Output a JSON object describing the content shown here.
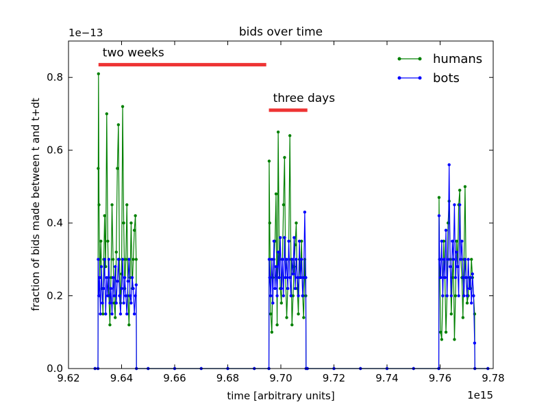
{
  "chart_data": {
    "type": "line",
    "title": "bids over time",
    "xlabel": "time [arbitrary units]",
    "ylabel": "fraction of bids made between t and t+dt",
    "x_offset_label": "1e15",
    "y_offset_label": "1e−13",
    "xlim": [
      9.62,
      9.78
    ],
    "ylim": [
      0,
      0.9
    ],
    "x_ticks": [
      {
        "value": 9.62,
        "label": "9.62"
      },
      {
        "value": 9.64,
        "label": "9.64"
      },
      {
        "value": 9.66,
        "label": "9.66"
      },
      {
        "value": 9.68,
        "label": "9.68"
      },
      {
        "value": 9.7,
        "label": "9.70"
      },
      {
        "value": 9.72,
        "label": "9.72"
      },
      {
        "value": 9.74,
        "label": "9.74"
      },
      {
        "value": 9.76,
        "label": "9.76"
      },
      {
        "value": 9.78,
        "label": "9.78"
      }
    ],
    "y_ticks": [
      {
        "value": 0.0,
        "label": "0.0"
      },
      {
        "value": 0.2,
        "label": "0.2"
      },
      {
        "value": 0.4,
        "label": "0.4"
      },
      {
        "value": 0.6,
        "label": "0.6"
      },
      {
        "value": 0.8,
        "label": "0.8"
      }
    ],
    "grid": false,
    "legend_position": "top-right",
    "series": [
      {
        "name": "humans",
        "color": "#008000",
        "x": [
          9.63,
          9.6311,
          9.6312,
          9.6313,
          9.6315,
          9.6318,
          9.6322,
          9.6326,
          9.633,
          9.6333,
          9.6336,
          9.634,
          9.6344,
          9.6348,
          9.6352,
          9.6356,
          9.636,
          9.6364,
          9.6368,
          9.6372,
          9.6376,
          9.638,
          9.6384,
          9.6388,
          9.6392,
          9.6396,
          9.64,
          9.6404,
          9.6408,
          9.6412,
          9.6416,
          9.642,
          9.6424,
          9.6428,
          9.6432,
          9.6436,
          9.644,
          9.6444,
          9.6448,
          9.6452,
          9.6455,
          9.6456,
          9.65,
          9.66,
          9.67,
          9.68,
          9.69,
          9.6955,
          9.6956,
          9.6958,
          9.6962,
          9.6966,
          9.697,
          9.6974,
          9.6978,
          9.6982,
          9.6986,
          9.699,
          9.6994,
          9.6998,
          9.7002,
          9.7006,
          9.701,
          9.7014,
          9.7018,
          9.7022,
          9.7026,
          9.703,
          9.7034,
          9.7038,
          9.7042,
          9.7046,
          9.705,
          9.7054,
          9.7058,
          9.7062,
          9.7066,
          9.707,
          9.7074,
          9.7078,
          9.7082,
          9.7086,
          9.709,
          9.7094,
          9.7095,
          9.71,
          9.72,
          9.73,
          9.74,
          9.75,
          9.7595,
          9.7596,
          9.7598,
          9.7602,
          9.7606,
          9.761,
          9.7614,
          9.7618,
          9.7622,
          9.7626,
          9.763,
          9.7634,
          9.7638,
          9.7642,
          9.7646,
          9.765,
          9.7654,
          9.7658,
          9.7662,
          9.7666,
          9.767,
          9.7674,
          9.7678,
          9.7682,
          9.7686,
          9.769,
          9.7694,
          9.7698,
          9.7702,
          9.7706,
          9.771,
          9.7714,
          9.7718,
          9.7722,
          9.7726,
          9.773,
          9.7731,
          9.778
        ],
        "y": [
          0,
          0,
          0.55,
          0.81,
          0.45,
          0.25,
          0.35,
          0.22,
          0.15,
          0.3,
          0.42,
          0.28,
          0.7,
          0.35,
          0.2,
          0.12,
          0.25,
          0.45,
          0.3,
          0.18,
          0.14,
          0.32,
          0.55,
          0.67,
          0.3,
          0.18,
          0.26,
          0.72,
          0.4,
          0.22,
          0.3,
          0.45,
          0.2,
          0.12,
          0.25,
          0.4,
          0.22,
          0.3,
          0.38,
          0.42,
          0.3,
          0,
          0,
          0,
          0,
          0,
          0,
          0,
          0.57,
          0.4,
          0.15,
          0.1,
          0.25,
          0.3,
          0.35,
          0.48,
          0.12,
          0.65,
          0.3,
          0.22,
          0.18,
          0.3,
          0.45,
          0.58,
          0.25,
          0.14,
          0.22,
          0.35,
          0.64,
          0.3,
          0.12,
          0.2,
          0.28,
          0.34,
          0.4,
          0.22,
          0.15,
          0.3,
          0.25,
          0.35,
          0.2,
          0.14,
          0.3,
          0.2,
          0,
          0,
          0,
          0,
          0,
          0,
          0,
          0.47,
          0.3,
          0.1,
          0.08,
          0.2,
          0.35,
          0.25,
          0.1,
          0.2,
          0.4,
          0.46,
          0.3,
          0.15,
          0.25,
          0.3,
          0.08,
          0.2,
          0.35,
          0.28,
          0.45,
          0.49,
          0.3,
          0.25,
          0.14,
          0.3,
          0.5,
          0.25,
          0.18,
          0.2,
          0.25,
          0.22,
          0.3,
          0.25,
          0.2,
          0.15,
          0,
          0
        ]
      },
      {
        "name": "bots",
        "color": "#0000ff",
        "x": [
          9.63,
          9.6311,
          9.6312,
          9.6314,
          9.6317,
          9.632,
          9.6324,
          9.6328,
          9.6332,
          9.6336,
          9.634,
          9.6344,
          9.6348,
          9.6352,
          9.6356,
          9.636,
          9.6364,
          9.6368,
          9.6372,
          9.6376,
          9.638,
          9.6384,
          9.6388,
          9.6392,
          9.6396,
          9.64,
          9.6404,
          9.6408,
          9.6412,
          9.6416,
          9.642,
          9.6424,
          9.6428,
          9.6432,
          9.6436,
          9.644,
          9.6444,
          9.6448,
          9.6452,
          9.6455,
          9.6456,
          9.65,
          9.66,
          9.67,
          9.68,
          9.69,
          9.6955,
          9.6956,
          9.6958,
          9.6962,
          9.6966,
          9.697,
          9.6974,
          9.6978,
          9.6982,
          9.6986,
          9.699,
          9.6994,
          9.6998,
          9.7002,
          9.7006,
          9.701,
          9.7014,
          9.7018,
          9.7022,
          9.7026,
          9.703,
          9.7034,
          9.7038,
          9.7042,
          9.7046,
          9.705,
          9.7054,
          9.7058,
          9.7062,
          9.7066,
          9.707,
          9.7074,
          9.7078,
          9.7082,
          9.7086,
          9.709,
          9.7094,
          9.7095,
          9.71,
          9.72,
          9.73,
          9.74,
          9.75,
          9.7595,
          9.7596,
          9.7598,
          9.7602,
          9.7606,
          9.761,
          9.7614,
          9.7618,
          9.7622,
          9.7626,
          9.763,
          9.7634,
          9.7638,
          9.7642,
          9.7646,
          9.765,
          9.7654,
          9.7658,
          9.7662,
          9.7666,
          9.767,
          9.7674,
          9.7678,
          9.7682,
          9.7686,
          9.769,
          9.7694,
          9.7698,
          9.7702,
          9.7706,
          9.771,
          9.7714,
          9.7718,
          9.7722,
          9.7726,
          9.773,
          9.7731,
          9.778
        ],
        "y": [
          0,
          0,
          0.3,
          0.2,
          0.25,
          0.15,
          0.28,
          0.18,
          0.22,
          0.3,
          0.15,
          0.25,
          0.2,
          0.3,
          0.18,
          0.22,
          0.15,
          0.25,
          0.2,
          0.28,
          0.18,
          0.24,
          0.3,
          0.2,
          0.15,
          0.22,
          0.3,
          0.18,
          0.25,
          0.2,
          0.15,
          0.24,
          0.3,
          0.2,
          0.18,
          0.25,
          0.22,
          0.15,
          0.2,
          0.23,
          0,
          0,
          0,
          0,
          0,
          0,
          0,
          0.3,
          0.25,
          0.2,
          0.3,
          0.18,
          0.35,
          0.22,
          0.28,
          0.2,
          0.32,
          0.25,
          0.36,
          0.22,
          0.3,
          0.2,
          0.36,
          0.25,
          0.3,
          0.22,
          0.35,
          0.25,
          0.2,
          0.3,
          0.26,
          0.36,
          0.22,
          0.3,
          0.25,
          0.2,
          0.35,
          0.25,
          0.3,
          0.2,
          0.25,
          0.43,
          0.25,
          0,
          0,
          0,
          0,
          0,
          0,
          0,
          0.42,
          0.3,
          0.25,
          0.35,
          0.2,
          0.3,
          0.25,
          0.38,
          0.2,
          0.3,
          0.56,
          0.28,
          0.2,
          0.35,
          0.3,
          0.45,
          0.25,
          0.32,
          0.28,
          0.2,
          0.45,
          0.3,
          0.35,
          0.25,
          0.2,
          0.3,
          0.25,
          0.2,
          0.3,
          0.22,
          0.25,
          0.18,
          0.26,
          0.2,
          0.07,
          0,
          0
        ]
      }
    ],
    "annotations": [
      {
        "text": "two weeks",
        "x0": 9.6313,
        "x1": 9.6945,
        "y": 0.835,
        "color": "#ee3333"
      },
      {
        "text": "three days",
        "x0": 9.6955,
        "x1": 9.71,
        "y": 0.71,
        "color": "#ee3333"
      }
    ]
  }
}
